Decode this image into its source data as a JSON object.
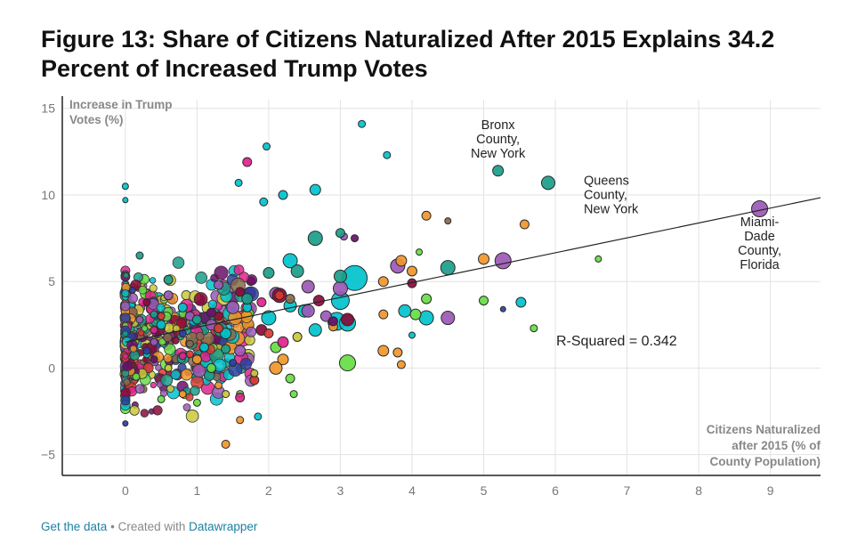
{
  "title": "Figure 13: Share of Citizens Naturalized After 2015 Explains 34.2 Percent of Increased Trump Votes",
  "footer": {
    "data_link": "Get the data",
    "separator": "•",
    "created_with": "Created with",
    "tool": "Datawrapper"
  },
  "chart_data": {
    "type": "scatter",
    "title": "Figure 13: Share of Citizens Naturalized After 2015 Explains 34.2 Percent of Increased Trump Votes",
    "xlabel": [
      "Citizens Naturalized",
      "after 2015 (% of",
      "County Population)"
    ],
    "ylabel": [
      "Increase in Trump",
      "Votes (%)"
    ],
    "xlim": [
      -0.88,
      9.7
    ],
    "ylim": [
      -6.2,
      15.5
    ],
    "x_ticks": [
      0,
      1,
      2,
      3,
      4,
      5,
      6,
      7,
      8,
      9
    ],
    "y_ticks": [
      -5,
      0,
      5,
      10,
      15
    ],
    "grid": true,
    "trendline": {
      "intercept": 1.5,
      "slope": 0.86,
      "x_start": 0,
      "x_end": 9.7
    },
    "r_squared_label": "R-Squared = 0.342",
    "annotations": [
      {
        "text": [
          "Bronx",
          "County,",
          "New York"
        ],
        "x": 5.2,
        "y": 13.8
      },
      {
        "text": [
          "Queens",
          "County,",
          "New York"
        ],
        "x": 6.0,
        "y": 10.6
      },
      {
        "text": [
          "Miami-",
          "Dade",
          "County,",
          "Florida"
        ],
        "x": 8.85,
        "y": 8.2
      }
    ],
    "series": [
      {
        "name": "",
        "color": "#00c2cc",
        "points": [
          {
            "x": 3.3,
            "y": 14.1,
            "r": 4
          },
          {
            "x": 3.65,
            "y": 12.3,
            "r": 4
          },
          {
            "x": 1.97,
            "y": 12.8,
            "r": 4
          },
          {
            "x": 1.58,
            "y": 10.7,
            "r": 4
          },
          {
            "x": 2.2,
            "y": 10.0,
            "r": 5
          },
          {
            "x": 1.93,
            "y": 9.6,
            "r": 4.5
          },
          {
            "x": 2.65,
            "y": 10.3,
            "r": 6
          },
          {
            "x": 0,
            "y": 10.5,
            "r": 3.5
          },
          {
            "x": 0,
            "y": 9.7,
            "r": 3
          },
          {
            "x": 3.2,
            "y": 5.2,
            "r": 14
          },
          {
            "x": 2.3,
            "y": 6.2,
            "r": 8
          },
          {
            "x": 3.0,
            "y": 3.9,
            "r": 10
          },
          {
            "x": 2.95,
            "y": 2.7,
            "r": 10
          },
          {
            "x": 3.1,
            "y": 2.6,
            "r": 9
          },
          {
            "x": 4.2,
            "y": 2.9,
            "r": 8
          },
          {
            "x": 3.9,
            "y": 3.3,
            "r": 7
          },
          {
            "x": 2.0,
            "y": 2.9,
            "r": 8
          },
          {
            "x": 2.5,
            "y": 3.3,
            "r": 7
          },
          {
            "x": 5.52,
            "y": 3.8,
            "r": 5.5
          },
          {
            "x": 4.0,
            "y": 1.9,
            "r": 3.5
          },
          {
            "x": 1.85,
            "y": -2.8,
            "r": 4
          },
          {
            "x": 2.3,
            "y": 3.6,
            "r": 7
          },
          {
            "x": 1.4,
            "y": 2.0,
            "r": 6
          },
          {
            "x": 0.8,
            "y": 3.5,
            "r": 5
          },
          {
            "x": 0.5,
            "y": 2.5,
            "r": 5
          },
          {
            "x": 1.1,
            "y": 1.2,
            "r": 5
          },
          {
            "x": 0.3,
            "y": 0.8,
            "r": 4
          },
          {
            "x": 2.65,
            "y": 2.2,
            "r": 7
          },
          {
            "x": 1.7,
            "y": 3.5,
            "r": 5
          }
        ]
      },
      {
        "name": "",
        "color": "#9b59b6",
        "points": [
          {
            "x": 8.85,
            "y": 9.2,
            "r": 9
          },
          {
            "x": 5.27,
            "y": 6.2,
            "r": 9
          },
          {
            "x": 3.8,
            "y": 5.9,
            "r": 8
          },
          {
            "x": 4.5,
            "y": 2.9,
            "r": 7.5
          },
          {
            "x": 3.0,
            "y": 4.6,
            "r": 8
          },
          {
            "x": 2.55,
            "y": 4.7,
            "r": 7
          },
          {
            "x": 2.1,
            "y": 4.3,
            "r": 7
          },
          {
            "x": 2.55,
            "y": 3.3,
            "r": 7
          },
          {
            "x": 3.05,
            "y": 7.6,
            "r": 4
          },
          {
            "x": 1.5,
            "y": 3.5,
            "r": 7
          },
          {
            "x": 1.2,
            "y": 2.5,
            "r": 6
          },
          {
            "x": 0.6,
            "y": 4.2,
            "r": 5
          },
          {
            "x": 0.9,
            "y": 3.0,
            "r": 5
          },
          {
            "x": 0.4,
            "y": 1.5,
            "r": 4
          },
          {
            "x": 1.6,
            "y": 1.0,
            "r": 6
          },
          {
            "x": 2.8,
            "y": 3.0,
            "r": 6
          },
          {
            "x": 0.2,
            "y": 2.8,
            "r": 4
          },
          {
            "x": 1.3,
            "y": 4.8,
            "r": 5
          }
        ]
      },
      {
        "name": "",
        "color": "#1a9e8a",
        "points": [
          {
            "x": 5.2,
            "y": 11.4,
            "r": 6
          },
          {
            "x": 5.9,
            "y": 10.7,
            "r": 7.5
          },
          {
            "x": 2.65,
            "y": 7.5,
            "r": 8
          },
          {
            "x": 4.5,
            "y": 5.8,
            "r": 8
          },
          {
            "x": 3.0,
            "y": 5.3,
            "r": 7
          },
          {
            "x": 2.4,
            "y": 5.6,
            "r": 7
          },
          {
            "x": 3.0,
            "y": 7.8,
            "r": 5
          },
          {
            "x": 0.2,
            "y": 6.5,
            "r": 4
          },
          {
            "x": 0.6,
            "y": 5.1,
            "r": 5
          },
          {
            "x": 1.0,
            "y": 2.8,
            "r": 5
          },
          {
            "x": 1.7,
            "y": 4.0,
            "r": 6
          },
          {
            "x": 0.4,
            "y": 3.1,
            "r": 4
          },
          {
            "x": 1.4,
            "y": 1.1,
            "r": 5
          },
          {
            "x": 2.0,
            "y": 5.5,
            "r": 6
          }
        ]
      },
      {
        "name": "",
        "color": "#f0962a",
        "points": [
          {
            "x": 5.57,
            "y": 8.3,
            "r": 5
          },
          {
            "x": 5.0,
            "y": 6.3,
            "r": 6
          },
          {
            "x": 4.2,
            "y": 8.8,
            "r": 5
          },
          {
            "x": 3.85,
            "y": 6.2,
            "r": 6
          },
          {
            "x": 4.0,
            "y": 5.6,
            "r": 5.5
          },
          {
            "x": 3.6,
            "y": 5.0,
            "r": 5.5
          },
          {
            "x": 3.6,
            "y": 3.1,
            "r": 5
          },
          {
            "x": 3.6,
            "y": 1.0,
            "r": 6
          },
          {
            "x": 3.8,
            "y": 0.9,
            "r": 5
          },
          {
            "x": 3.85,
            "y": 0.2,
            "r": 4.5
          },
          {
            "x": 2.2,
            "y": 0.5,
            "r": 6
          },
          {
            "x": 2.1,
            "y": 0.0,
            "r": 7
          },
          {
            "x": 1.4,
            "y": -4.4,
            "r": 4.5
          },
          {
            "x": 1.6,
            "y": -3.0,
            "r": 4
          },
          {
            "x": 1.0,
            "y": 0.5,
            "r": 5
          },
          {
            "x": 0.8,
            "y": -1.5,
            "r": 4
          },
          {
            "x": 2.9,
            "y": 2.4,
            "r": 5
          },
          {
            "x": 1.3,
            "y": -1.0,
            "r": 4
          }
        ]
      },
      {
        "name": "",
        "color": "#66dd44",
        "points": [
          {
            "x": 5.0,
            "y": 3.9,
            "r": 5
          },
          {
            "x": 5.7,
            "y": 2.3,
            "r": 4
          },
          {
            "x": 6.6,
            "y": 6.3,
            "r": 3.5
          },
          {
            "x": 4.2,
            "y": 4.0,
            "r": 5.5
          },
          {
            "x": 4.05,
            "y": 3.1,
            "r": 6
          },
          {
            "x": 4.1,
            "y": 6.7,
            "r": 3.5
          },
          {
            "x": 3.1,
            "y": 0.3,
            "r": 9
          },
          {
            "x": 2.1,
            "y": 1.2,
            "r": 6
          },
          {
            "x": 2.3,
            "y": -0.6,
            "r": 5
          },
          {
            "x": 1.6,
            "y": -1.5,
            "r": 4
          },
          {
            "x": 1.0,
            "y": -2.0,
            "r": 4
          },
          {
            "x": 0.5,
            "y": -1.8,
            "r": 4
          },
          {
            "x": 0.15,
            "y": -0.5,
            "r": 4
          },
          {
            "x": 2.35,
            "y": -1.5,
            "r": 4
          },
          {
            "x": 1.2,
            "y": 0.0,
            "r": 5
          }
        ]
      },
      {
        "name": "",
        "color": "#8b0a3a",
        "points": [
          {
            "x": 2.15,
            "y": 4.2,
            "r": 8
          },
          {
            "x": 3.1,
            "y": 2.8,
            "r": 7
          },
          {
            "x": 2.7,
            "y": 3.9,
            "r": 6
          },
          {
            "x": 4.0,
            "y": 4.9,
            "r": 5
          },
          {
            "x": 1.9,
            "y": 2.2,
            "r": 6
          },
          {
            "x": 1.3,
            "y": 3.0,
            "r": 5
          },
          {
            "x": 0.7,
            "y": 1.6,
            "r": 4
          },
          {
            "x": 0.3,
            "y": 3.8,
            "r": 4
          },
          {
            "x": 1.6,
            "y": 4.4,
            "r": 5
          }
        ]
      },
      {
        "name": "",
        "color": "#e0238c",
        "points": [
          {
            "x": 1.7,
            "y": 11.9,
            "r": 5
          },
          {
            "x": 1.6,
            "y": -1.7,
            "r": 5
          },
          {
            "x": 2.2,
            "y": 1.5,
            "r": 6
          },
          {
            "x": 1.9,
            "y": 3.8,
            "r": 5
          },
          {
            "x": 0.8,
            "y": 0.7,
            "r": 4
          },
          {
            "x": 0.4,
            "y": 2.2,
            "r": 4
          }
        ]
      },
      {
        "name": "",
        "color": "#d93a30",
        "points": [
          {
            "x": 2.15,
            "y": 4.2,
            "r": 5
          },
          {
            "x": 1.8,
            "y": -0.7,
            "r": 5
          },
          {
            "x": 2.0,
            "y": 2.0,
            "r": 5
          },
          {
            "x": 0.9,
            "y": 0.8,
            "r": 4
          },
          {
            "x": 0.5,
            "y": 3.0,
            "r": 4
          },
          {
            "x": 1.3,
            "y": 2.3,
            "r": 5
          }
        ]
      },
      {
        "name": "",
        "color": "#2b3f9e",
        "points": [
          {
            "x": 5.27,
            "y": 3.4,
            "r": 3
          },
          {
            "x": 0.0,
            "y": -3.2,
            "r": 3
          },
          {
            "x": 0.3,
            "y": 1.0,
            "r": 4
          },
          {
            "x": 0.8,
            "y": 2.0,
            "r": 4
          },
          {
            "x": 1.5,
            "y": 0.3,
            "r": 4
          },
          {
            "x": 0.1,
            "y": 4.5,
            "r": 3.5
          }
        ]
      },
      {
        "name": "",
        "color": "#c9c93a",
        "points": [
          {
            "x": 1.4,
            "y": -1.5,
            "r": 4
          },
          {
            "x": 0.6,
            "y": 0.0,
            "r": 4
          },
          {
            "x": 2.4,
            "y": 1.8,
            "r": 5
          },
          {
            "x": 1.8,
            "y": -0.3,
            "r": 4
          }
        ]
      },
      {
        "name": "",
        "color": "#8a6a4a",
        "points": [
          {
            "x": 4.5,
            "y": 8.5,
            "r": 3.5
          },
          {
            "x": 2.3,
            "y": 4.0,
            "r": 5
          },
          {
            "x": 0.9,
            "y": 1.4,
            "r": 4
          }
        ]
      },
      {
        "name": "",
        "color": "#6a0f6a",
        "points": [
          {
            "x": 3.2,
            "y": 7.5,
            "r": 4
          },
          {
            "x": 2.9,
            "y": 2.7,
            "r": 5
          },
          {
            "x": 1.2,
            "y": 3.2,
            "r": 5
          },
          {
            "x": 0.4,
            "y": 0.5,
            "r": 4
          }
        ]
      }
    ]
  }
}
